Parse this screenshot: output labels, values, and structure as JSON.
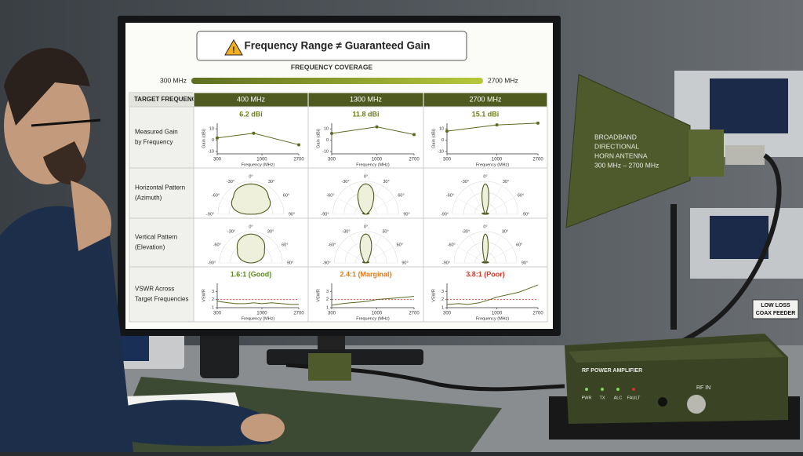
{
  "screen": {
    "title": "Frequency Range ≠ Guaranteed Gain",
    "coverage": {
      "label": "FREQUENCY COVERAGE",
      "start": "300 MHz",
      "end": "2700 MHz"
    },
    "table": {
      "corner": "TARGET FREQUENCY",
      "columns": [
        "400 MHz",
        "1300 MHz",
        "2700 MHz"
      ],
      "rows": [
        [
          "Measured Gain",
          "by Frequency"
        ],
        [
          "Horizontal Pattern",
          "(Azimuth)"
        ],
        [
          "Vertical Pattern",
          "(Elevation)"
        ],
        [
          "VSWR Across",
          "Target Frequencies"
        ]
      ]
    },
    "polar_angles": [
      {
        "value": 0,
        "label": "0°"
      },
      {
        "value": -30,
        "label": "-30°"
      },
      {
        "value": 30,
        "label": "30°"
      },
      {
        "value": -60,
        "label": "-60°"
      },
      {
        "value": 60,
        "label": "60°"
      },
      {
        "value": -90,
        "label": "-90°"
      },
      {
        "value": 90,
        "label": "90°"
      }
    ]
  },
  "chart_data": [
    {
      "type": "line",
      "title": "6.2 dBi",
      "title_color": "#6b7d1e",
      "ylabel": "Gain (dBi)",
      "xlabel": "Frequency (MHz)",
      "xscale": "log",
      "x": [
        300,
        800,
        2700
      ],
      "values": [
        2,
        6.2,
        -4
      ],
      "xlim": [
        300,
        2700
      ],
      "ylim": [
        -12,
        15
      ],
      "xticks": [
        300,
        1000,
        2700
      ],
      "yticks": [
        10,
        0,
        -10
      ],
      "color": "#5a6b22"
    },
    {
      "type": "line",
      "title": "11.8 dBi",
      "title_color": "#6b7d1e",
      "ylabel": "Gain (dBi)",
      "xlabel": "Frequency (MHz)",
      "xscale": "log",
      "x": [
        300,
        1000,
        2700
      ],
      "values": [
        6,
        11.8,
        5
      ],
      "xlim": [
        300,
        2700
      ],
      "ylim": [
        -12,
        15
      ],
      "xticks": [
        300,
        1000,
        2700
      ],
      "yticks": [
        10,
        0,
        -10
      ],
      "color": "#5a6b22"
    },
    {
      "type": "line",
      "title": "15.1 dBi",
      "title_color": "#6b7d1e",
      "ylabel": "Gain (dBi)",
      "xlabel": "Frequency (MHz)",
      "xscale": "log",
      "x": [
        300,
        1000,
        2700
      ],
      "values": [
        8,
        13.5,
        15.1
      ],
      "xlim": [
        300,
        2700
      ],
      "ylim": [
        -12,
        15
      ],
      "xticks": [
        300,
        1000,
        2700
      ],
      "yticks": [
        10,
        0,
        -10
      ],
      "color": "#5a6b22"
    },
    {
      "type": "line",
      "title": "1.6:1 (Good)",
      "title_color": "#5f8a1e",
      "ylabel": "VSWR",
      "xlabel": "Frequency (MHz)",
      "xscale": "log",
      "x": [
        300,
        400,
        500,
        650,
        800,
        1000,
        1300,
        1700,
        2200,
        2700
      ],
      "values": [
        1.8,
        1.6,
        1.5,
        1.5,
        1.6,
        1.5,
        1.6,
        1.5,
        1.4,
        1.4
      ],
      "threshold": 2,
      "xlim": [
        300,
        2700
      ],
      "ylim": [
        1,
        4
      ],
      "xticks": [
        300,
        1000,
        2700
      ],
      "yticks": [
        1,
        2,
        3
      ],
      "color": "#5a6b22"
    },
    {
      "type": "line",
      "title": "2.4:1 (Marginal)",
      "title_color": "#e07b1a",
      "ylabel": "VSWR",
      "xlabel": "Frequency (MHz)",
      "xscale": "log",
      "x": [
        300,
        400,
        500,
        650,
        800,
        1000,
        1300,
        1700,
        2200,
        2700
      ],
      "values": [
        1.3,
        1.5,
        1.6,
        1.7,
        1.8,
        2.0,
        2.1,
        2.2,
        2.3,
        2.4
      ],
      "threshold": 2,
      "xlim": [
        300,
        2700
      ],
      "ylim": [
        1,
        4
      ],
      "xticks": [
        300,
        1000,
        2700
      ],
      "yticks": [
        1,
        2,
        3
      ],
      "color": "#5a6b22"
    },
    {
      "type": "line",
      "title": "3.8:1 (Poor)",
      "title_color": "#d23a2a",
      "ylabel": "VSWR",
      "xlabel": "Frequency (MHz)",
      "xscale": "log",
      "x": [
        300,
        400,
        500,
        650,
        800,
        1000,
        1300,
        1700,
        2200,
        2700
      ],
      "values": [
        1.4,
        1.5,
        1.4,
        1.6,
        1.9,
        2.3,
        2.6,
        2.9,
        3.4,
        3.8
      ],
      "threshold": 2,
      "xlim": [
        300,
        2700
      ],
      "ylim": [
        1,
        4
      ],
      "xticks": [
        300,
        1000,
        2700
      ],
      "yticks": [
        1,
        2,
        3
      ],
      "color": "#5a6b22"
    }
  ],
  "scene": {
    "antenna": [
      "BROADBAND",
      "DIRECTIONAL",
      "HORN ANTENNA",
      "300 MHz – 2700 MHz"
    ],
    "feeder": [
      "LOW LOSS",
      "COAX FEEDER"
    ],
    "amplifier": {
      "title": "RF POWER AMPLIFIER",
      "leds": [
        "PWR",
        "TX",
        "ALC",
        "FAULT"
      ],
      "port": "RF IN"
    }
  }
}
